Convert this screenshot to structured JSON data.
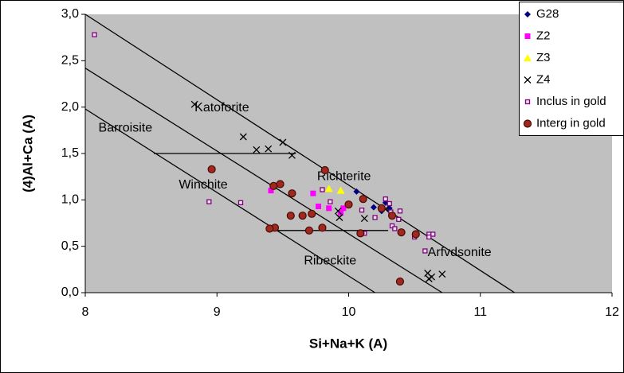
{
  "chart_data": {
    "type": "scatter",
    "x_label": "Si+Na+K (A)",
    "y_label": "(4)Al+Ca (A)",
    "xlim": [
      8,
      12
    ],
    "ylim": [
      0,
      3
    ],
    "xticks": [
      8,
      9,
      10,
      11,
      12
    ],
    "yticks": [
      {
        "value": 0,
        "label": "0,0"
      },
      {
        "value": 0.5,
        "label": "0,5"
      },
      {
        "value": 1,
        "label": "1,0"
      },
      {
        "value": 1.5,
        "label": "1,5"
      },
      {
        "value": 2,
        "label": "2,0"
      },
      {
        "value": 2.5,
        "label": "2,5"
      },
      {
        "value": 3,
        "label": "3,0"
      }
    ],
    "grid": false,
    "legend": "top-right",
    "series": [
      {
        "name": "G28",
        "color": "#000080",
        "marker": "diamond",
        "x": [
          10.06,
          10.19,
          10.25,
          10.28,
          10.31
        ],
        "values": [
          1.09,
          0.92,
          0.88,
          0.97,
          0.91
        ]
      },
      {
        "name": "Z2",
        "color": "#ff00ff",
        "marker": "square",
        "x": [
          9.41,
          9.73,
          9.77,
          9.85,
          9.94,
          9.96
        ],
        "values": [
          1.1,
          1.07,
          0.93,
          0.91,
          0.86,
          0.91
        ]
      },
      {
        "name": "Z3",
        "color": "#ffff00",
        "marker": "triangle",
        "x": [
          9.85,
          9.94
        ],
        "values": [
          1.12,
          1.1
        ]
      },
      {
        "name": "Z4",
        "color": "#000000",
        "marker": "x",
        "x": [
          8.83,
          9.2,
          9.3,
          9.39,
          9.5,
          9.57,
          9.92,
          9.93,
          10.12,
          10.28,
          10.6,
          10.61,
          10.63,
          10.71
        ],
        "values": [
          2.03,
          1.68,
          1.54,
          1.55,
          1.62,
          1.48,
          0.88,
          0.81,
          0.8,
          0.9,
          0.21,
          0.15,
          0.17,
          0.2
        ]
      },
      {
        "name": "Inclus in gold",
        "color": "#800080",
        "marker": "open-square",
        "x": [
          8.07,
          8.94,
          9.18,
          9.8,
          9.86,
          10.1,
          10.12,
          10.2,
          10.28,
          10.31,
          10.32,
          10.33,
          10.35,
          10.39,
          10.38,
          10.5,
          10.58,
          10.61,
          10.64,
          10.61
        ],
        "values": [
          2.78,
          0.98,
          0.97,
          1.11,
          0.98,
          0.89,
          0.64,
          0.81,
          1.01,
          0.96,
          0.87,
          0.72,
          0.69,
          0.88,
          0.79,
          0.6,
          0.45,
          0.63,
          0.63,
          0.6
        ]
      },
      {
        "name": "Interg  in gold",
        "color": "#a0281e",
        "marker": "circle",
        "x": [
          8.96,
          9.43,
          9.48,
          9.57,
          9.44,
          9.4,
          9.56,
          9.65,
          9.72,
          9.7,
          9.8,
          9.82,
          10.0,
          10.09,
          10.11,
          10.25,
          10.33,
          10.4,
          10.51,
          10.39
        ],
        "values": [
          1.33,
          1.15,
          1.17,
          1.07,
          0.7,
          0.69,
          0.83,
          0.83,
          0.85,
          0.67,
          0.7,
          1.32,
          0.95,
          0.64,
          1.01,
          0.91,
          0.83,
          0.65,
          0.63,
          0.12
        ]
      }
    ],
    "reference_lines": [
      {
        "x": [
          8,
          11.26
        ],
        "y": [
          3,
          0
        ]
      },
      {
        "x": [
          8,
          10.71
        ],
        "y": [
          2.42,
          0
        ]
      },
      {
        "x": [
          8,
          10.2
        ],
        "y": [
          1.98,
          0
        ]
      },
      {
        "x": [
          8.52,
          9.6
        ],
        "y": [
          1.5,
          1.5
        ]
      },
      {
        "x": [
          9.4,
          10.3
        ],
        "y": [
          0.67,
          0.67
        ]
      }
    ],
    "annotations": [
      {
        "text": "Katoforite",
        "x": 8.83,
        "y": 1.99
      },
      {
        "text": "Barroisite",
        "x": 8.1,
        "y": 1.77
      },
      {
        "text": "Winchite",
        "x": 8.71,
        "y": 1.16
      },
      {
        "text": "Richterite",
        "x": 9.76,
        "y": 1.25
      },
      {
        "text": "Ribeckite",
        "x": 9.66,
        "y": 0.34
      },
      {
        "text": "Arfvdsonite",
        "x": 10.6,
        "y": 0.43
      }
    ]
  }
}
